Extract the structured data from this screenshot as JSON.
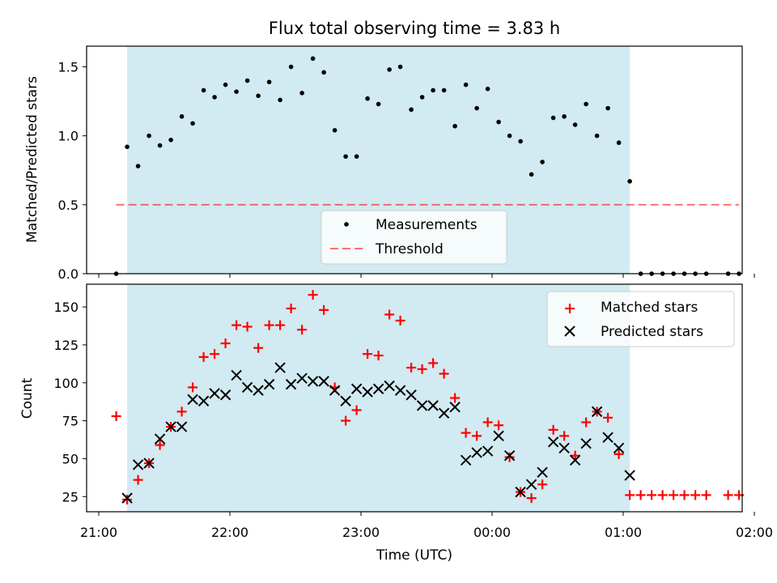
{
  "chart_data": [
    {
      "type": "scatter",
      "title": "Flux total observing time = 3.83 h",
      "xlabel": "",
      "ylabel": "Matched/Predicted stars",
      "ylim": [
        0.0,
        1.65
      ],
      "yticks": [
        "0.0",
        "0.5",
        "1.0",
        "1.5"
      ],
      "xlim": [
        "21:00",
        "02:00"
      ],
      "xticks": [
        "21:00",
        "22:00",
        "23:00",
        "00:00",
        "01:00",
        "02:00"
      ],
      "legend": "lower-center",
      "shaded_span": [
        "21:13",
        "01:03"
      ],
      "colors": {
        "shade": "#add8e6",
        "points": "#000000",
        "threshold": "#ff0000"
      },
      "series": [
        {
          "name": "Measurements",
          "x": [
            "21:08",
            "21:13",
            "21:18",
            "21:23",
            "21:28",
            "21:33",
            "21:38",
            "21:43",
            "21:48",
            "21:53",
            "21:58",
            "22:03",
            "22:08",
            "22:13",
            "22:18",
            "22:23",
            "22:28",
            "22:33",
            "22:38",
            "22:43",
            "22:48",
            "22:53",
            "22:58",
            "23:03",
            "23:08",
            "23:13",
            "23:18",
            "23:23",
            "23:28",
            "23:33",
            "23:38",
            "23:43",
            "23:48",
            "23:53",
            "23:58",
            "00:03",
            "00:08",
            "00:13",
            "00:18",
            "00:23",
            "00:28",
            "00:33",
            "00:38",
            "00:43",
            "00:48",
            "00:53",
            "00:58",
            "01:03",
            "01:08",
            "01:13",
            "01:18",
            "01:23",
            "01:28",
            "01:33",
            "01:38",
            "01:48",
            "01:53"
          ],
          "y": [
            0.0,
            0.92,
            0.78,
            1.0,
            0.93,
            0.97,
            1.14,
            1.09,
            1.33,
            1.28,
            1.37,
            1.32,
            1.4,
            1.29,
            1.39,
            1.26,
            1.5,
            1.31,
            1.56,
            1.46,
            1.04,
            0.85,
            0.85,
            1.27,
            1.23,
            1.48,
            1.5,
            1.19,
            1.28,
            1.33,
            1.33,
            1.07,
            1.37,
            1.2,
            1.34,
            1.1,
            1.0,
            0.96,
            0.72,
            0.81,
            1.13,
            1.14,
            1.08,
            1.23,
            1.0,
            1.2,
            0.95,
            0.67,
            0.0,
            0.0,
            0.0,
            0.0,
            0.0,
            0.0,
            0.0,
            0.0,
            0.0
          ]
        },
        {
          "name": "Threshold",
          "x": [
            "21:08",
            "01:53"
          ],
          "y": [
            0.5,
            0.5
          ]
        }
      ]
    },
    {
      "type": "scatter",
      "title": "",
      "xlabel": "Time (UTC)",
      "ylabel": "Count",
      "ylim": [
        15,
        165
      ],
      "yticks": [
        "25",
        "50",
        "75",
        "100",
        "125",
        "150"
      ],
      "xlim": [
        "21:00",
        "02:00"
      ],
      "xticks": [
        "21:00",
        "22:00",
        "23:00",
        "00:00",
        "01:00",
        "02:00"
      ],
      "legend": "top-right",
      "shaded_span": [
        "21:13",
        "01:03"
      ],
      "colors": {
        "matched": "#ff0000",
        "predicted": "#000000"
      },
      "series": [
        {
          "name": "Matched stars",
          "x": [
            "21:08",
            "21:13",
            "21:18",
            "21:23",
            "21:28",
            "21:33",
            "21:38",
            "21:43",
            "21:48",
            "21:53",
            "21:58",
            "22:03",
            "22:08",
            "22:13",
            "22:18",
            "22:23",
            "22:28",
            "22:33",
            "22:38",
            "22:43",
            "22:48",
            "22:53",
            "22:58",
            "23:03",
            "23:08",
            "23:13",
            "23:18",
            "23:23",
            "23:28",
            "23:33",
            "23:38",
            "23:43",
            "23:48",
            "23:53",
            "23:58",
            "00:03",
            "00:08",
            "00:13",
            "00:18",
            "00:23",
            "00:28",
            "00:33",
            "00:38",
            "00:43",
            "00:48",
            "00:53",
            "00:58",
            "01:03",
            "01:08",
            "01:13",
            "01:18",
            "01:23",
            "01:28",
            "01:33",
            "01:38",
            "01:48",
            "01:53"
          ],
          "y": [
            78,
            23,
            36,
            47,
            59,
            71,
            81,
            97,
            117,
            119,
            126,
            138,
            137,
            123,
            138,
            138,
            149,
            135,
            158,
            148,
            97,
            75,
            82,
            119,
            118,
            145,
            141,
            110,
            109,
            113,
            106,
            90,
            67,
            65,
            74,
            72,
            51,
            28,
            24,
            33,
            69,
            65,
            52,
            74,
            81,
            77,
            53,
            26,
            26,
            26,
            26,
            26,
            26,
            26,
            26,
            26,
            26
          ]
        },
        {
          "name": "Predicted stars",
          "x": [
            "21:13",
            "21:18",
            "21:23",
            "21:28",
            "21:33",
            "21:38",
            "21:43",
            "21:48",
            "21:53",
            "21:58",
            "22:03",
            "22:08",
            "22:13",
            "22:18",
            "22:23",
            "22:28",
            "22:33",
            "22:38",
            "22:43",
            "22:48",
            "22:53",
            "22:58",
            "23:03",
            "23:08",
            "23:13",
            "23:18",
            "23:23",
            "23:28",
            "23:33",
            "23:38",
            "23:43",
            "23:48",
            "23:53",
            "23:58",
            "00:03",
            "00:08",
            "00:13",
            "00:18",
            "00:23",
            "00:28",
            "00:33",
            "00:38",
            "00:43",
            "00:48",
            "00:53",
            "00:58",
            "01:03"
          ],
          "y": [
            24,
            46,
            47,
            63,
            71,
            71,
            89,
            88,
            93,
            92,
            105,
            97,
            95,
            99,
            110,
            99,
            103,
            101,
            101,
            95,
            88,
            96,
            94,
            96,
            98,
            95,
            92,
            85,
            85,
            80,
            84,
            49,
            54,
            55,
            65,
            52,
            28,
            33,
            41,
            61,
            57,
            49,
            60,
            81,
            64,
            57,
            39
          ]
        }
      ]
    }
  ]
}
